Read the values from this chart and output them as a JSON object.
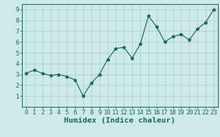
{
  "x": [
    0,
    1,
    2,
    3,
    4,
    5,
    6,
    7,
    8,
    9,
    10,
    11,
    12,
    13,
    14,
    15,
    16,
    17,
    18,
    19,
    20,
    21,
    22,
    23
  ],
  "y": [
    3.1,
    3.4,
    3.1,
    2.9,
    3.0,
    2.8,
    2.5,
    1.0,
    2.2,
    3.0,
    4.4,
    5.4,
    5.5,
    4.5,
    5.8,
    8.4,
    7.4,
    6.0,
    6.5,
    6.7,
    6.2,
    7.2,
    7.8,
    9.0
  ],
  "xlabel": "Humidex (Indice chaleur)",
  "ylim": [
    0,
    9.5
  ],
  "xlim": [
    -0.5,
    23.5
  ],
  "yticks": [
    1,
    2,
    3,
    4,
    5,
    6,
    7,
    8,
    9
  ],
  "xticks": [
    0,
    1,
    2,
    3,
    4,
    5,
    6,
    7,
    8,
    9,
    10,
    11,
    12,
    13,
    14,
    15,
    16,
    17,
    18,
    19,
    20,
    21,
    22,
    23
  ],
  "line_color": "#1a6b5a",
  "marker": "*",
  "marker_size": 3.5,
  "bg_color": "#ceeae6",
  "grid_color": "#aed4ce",
  "axis_color": "#1a6b5a",
  "xlabel_fontsize": 8,
  "tick_fontsize": 6.5,
  "font_family": "monospace"
}
